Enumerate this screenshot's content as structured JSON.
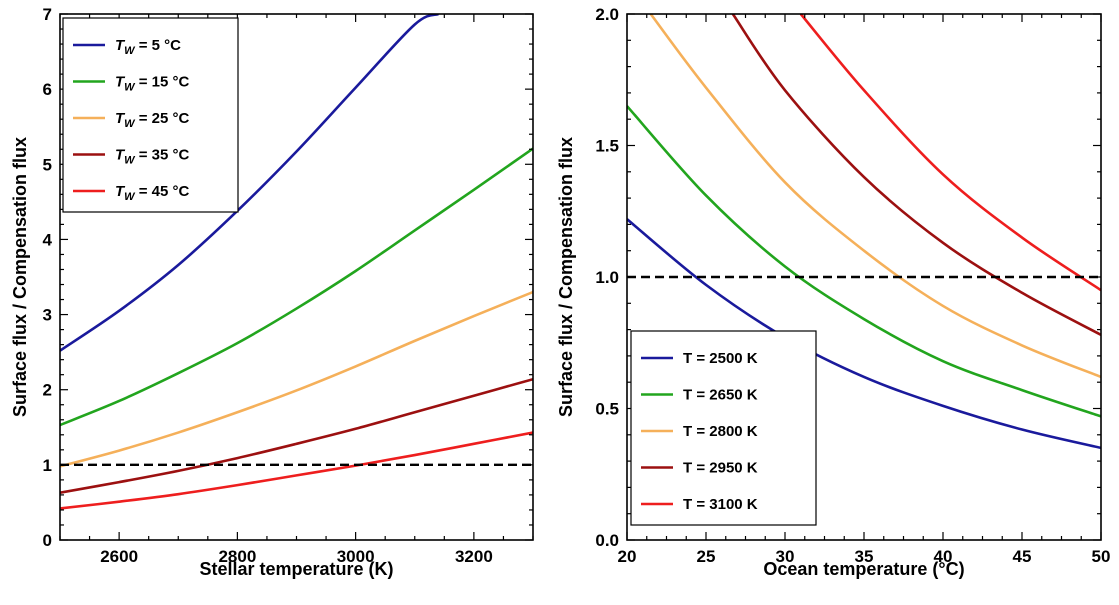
{
  "chart_data": [
    {
      "type": "line",
      "xlabel": "Stellar temperature (K)",
      "ylabel": "Surface flux / Compensation flux",
      "xlim": [
        2500,
        3300
      ],
      "ylim": [
        0,
        7
      ],
      "xticks": [
        2600,
        2800,
        3000,
        3200
      ],
      "yticks": [
        0,
        1,
        2,
        3,
        4,
        5,
        6,
        7
      ],
      "legend_position": "top-left",
      "reference_line": {
        "y": 1,
        "style": "dashed",
        "color": "#000000"
      },
      "series": [
        {
          "name_sym": "T",
          "name_sub": "W",
          "name_rest": " = 5 °C",
          "color": "#1a1a9c",
          "x": [
            2500,
            2600,
            2700,
            2800,
            2900,
            3000,
            3100,
            3140
          ],
          "values": [
            2.52,
            3.05,
            3.66,
            4.38,
            5.17,
            6.02,
            6.86,
            7.0
          ]
        },
        {
          "name_sym": "T",
          "name_sub": "W",
          "name_rest": " = 15 °C",
          "color": "#22a51e",
          "x": [
            2500,
            2600,
            2700,
            2800,
            2900,
            3000,
            3100,
            3200,
            3300
          ],
          "values": [
            1.53,
            1.85,
            2.22,
            2.62,
            3.08,
            3.58,
            4.12,
            4.66,
            5.21
          ]
        },
        {
          "name_sym": "T",
          "name_sub": "W",
          "name_rest": " = 25 °C",
          "color": "#f5b05a",
          "x": [
            2500,
            2600,
            2700,
            2800,
            2900,
            3000,
            3100,
            3200,
            3300
          ],
          "values": [
            0.98,
            1.19,
            1.43,
            1.7,
            1.99,
            2.31,
            2.65,
            2.98,
            3.3
          ]
        },
        {
          "name_sym": "T",
          "name_sub": "W",
          "name_rest": " = 35 °C",
          "color": "#9c1010",
          "x": [
            2500,
            2600,
            2700,
            2800,
            2900,
            3000,
            3100,
            3200,
            3300
          ],
          "values": [
            0.63,
            0.77,
            0.92,
            1.09,
            1.28,
            1.48,
            1.7,
            1.92,
            2.14
          ]
        },
        {
          "name_sym": "T",
          "name_sub": "W",
          "name_rest": " = 45 °C",
          "color": "#ee1e1e",
          "x": [
            2500,
            2600,
            2700,
            2800,
            2900,
            3000,
            3100,
            3200,
            3300
          ],
          "values": [
            0.42,
            0.51,
            0.61,
            0.73,
            0.86,
            0.99,
            1.13,
            1.28,
            1.43
          ]
        }
      ]
    },
    {
      "type": "line",
      "xlabel": "Ocean temperature (°C)",
      "ylabel": "Surface flux / Compensation flux",
      "xlim": [
        20,
        50
      ],
      "ylim": [
        0,
        2
      ],
      "xticks": [
        20,
        25,
        30,
        35,
        40,
        45,
        50
      ],
      "yticks": [
        0.0,
        0.5,
        1.0,
        1.5,
        2.0
      ],
      "ytick_labels": [
        "0.0",
        "0.5",
        "1.0",
        "1.5",
        "2.0"
      ],
      "legend_position": "bottom-left",
      "reference_line": {
        "y": 1,
        "style": "dashed",
        "color": "#000000"
      },
      "series": [
        {
          "name": "T = 2500 K",
          "color": "#1a1a9c",
          "x": [
            20,
            25,
            30,
            35,
            40,
            45,
            50
          ],
          "values": [
            1.22,
            0.97,
            0.77,
            0.62,
            0.51,
            0.42,
            0.35
          ]
        },
        {
          "name": "T = 2650 K",
          "color": "#22a51e",
          "x": [
            20,
            25,
            30,
            35,
            40,
            45,
            50
          ],
          "values": [
            1.65,
            1.31,
            1.04,
            0.84,
            0.68,
            0.57,
            0.47
          ]
        },
        {
          "name": "T = 2800 K",
          "color": "#f5b05a",
          "x": [
            21.5,
            25,
            30,
            35,
            40,
            45,
            50
          ],
          "values": [
            2.0,
            1.72,
            1.36,
            1.1,
            0.89,
            0.74,
            0.62
          ]
        },
        {
          "name": "T = 2950 K",
          "color": "#9c1010",
          "x": [
            26.7,
            30,
            35,
            40,
            45,
            50
          ],
          "values": [
            2.0,
            1.71,
            1.38,
            1.13,
            0.94,
            0.78
          ]
        },
        {
          "name": "T = 3100 K",
          "color": "#ee1e1e",
          "x": [
            31.0,
            35,
            40,
            45,
            50
          ],
          "values": [
            2.0,
            1.71,
            1.39,
            1.15,
            0.95
          ]
        }
      ]
    }
  ]
}
